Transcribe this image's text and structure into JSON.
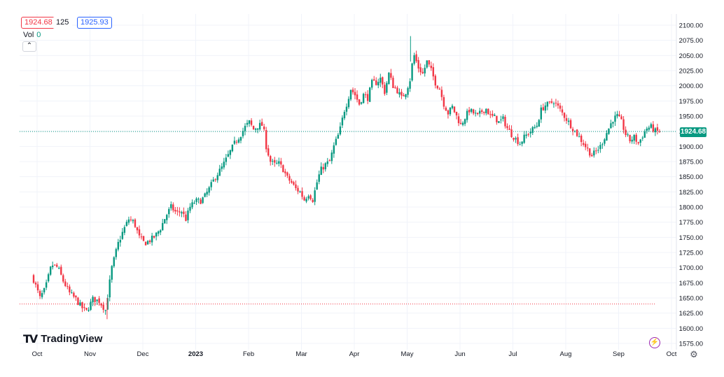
{
  "header": {
    "bid": "1924.68",
    "spread": "125",
    "ask": "1925.93",
    "vol_label": "Vol",
    "vol_value": "0",
    "collapse_icon": "chevron-up-icon"
  },
  "branding": {
    "logo_mark": "TV",
    "logo_text": "TradingView"
  },
  "current_price": "1924.68",
  "colors": {
    "up": "#089981",
    "down": "#f23645",
    "grid": "#f0f3fa",
    "axis_text": "#131722"
  },
  "chart_data": {
    "type": "candlestick",
    "y_axis": {
      "range": [
        1575,
        2100
      ],
      "ticks": [
        "2100.00",
        "2075.00",
        "2050.00",
        "2025.00",
        "2000.00",
        "1975.00",
        "1950.00",
        "1925.00",
        "1900.00",
        "1875.00",
        "1850.00",
        "1825.00",
        "1800.00",
        "1775.00",
        "1750.00",
        "1725.00",
        "1700.00",
        "1675.00",
        "1650.00",
        "1625.00",
        "1600.00",
        "1575.00"
      ]
    },
    "x_axis": {
      "labels": [
        "Oct",
        "Nov",
        "Dec",
        "2023",
        "Feb",
        "Mar",
        "Apr",
        "May",
        "Jun",
        "Jul",
        "Aug",
        "Sep",
        "Oct"
      ],
      "label_index": [
        0,
        5,
        10,
        15,
        20,
        25,
        30,
        35,
        40,
        45,
        50,
        55,
        60
      ],
      "total_slots": 60
    },
    "horizontal_lines": [
      {
        "name": "current-price-line",
        "value": 1924.68,
        "color": "#089981"
      },
      {
        "name": "support-line",
        "value": 1640,
        "color": "#f23645"
      }
    ],
    "close_path": [
      [
        0,
        1680
      ],
      [
        0.6,
        1650
      ],
      [
        1.1,
        1665
      ],
      [
        1.7,
        1705
      ],
      [
        2.3,
        1700
      ],
      [
        2.8,
        1678
      ],
      [
        3.4,
        1658
      ],
      [
        4,
        1648
      ],
      [
        4.5,
        1635
      ],
      [
        5,
        1628
      ],
      [
        5.6,
        1648
      ],
      [
        6.2,
        1645
      ],
      [
        6.8,
        1630
      ],
      [
        7.4,
        1700
      ],
      [
        8,
        1740
      ],
      [
        8.5,
        1762
      ],
      [
        9,
        1780
      ],
      [
        9.5,
        1775
      ],
      [
        10,
        1750
      ],
      [
        10.5,
        1740
      ],
      [
        11,
        1745
      ],
      [
        11.5,
        1752
      ],
      [
        12,
        1765
      ],
      [
        12.5,
        1785
      ],
      [
        13,
        1800
      ],
      [
        13.5,
        1790
      ],
      [
        14,
        1793
      ],
      [
        14.4,
        1780
      ],
      [
        14.8,
        1800
      ],
      [
        15.3,
        1810
      ],
      [
        15.8,
        1810
      ],
      [
        16.2,
        1818
      ],
      [
        16.6,
        1830
      ],
      [
        17.2,
        1850
      ],
      [
        17.8,
        1865
      ],
      [
        18.4,
        1885
      ],
      [
        19,
        1905
      ],
      [
        19.6,
        1920
      ],
      [
        20,
        1932
      ],
      [
        20.4,
        1940
      ],
      [
        20.8,
        1928
      ],
      [
        21.3,
        1935
      ],
      [
        21.7,
        1935
      ],
      [
        22,
        1900
      ],
      [
        22.4,
        1875
      ],
      [
        22.8,
        1870
      ],
      [
        23.2,
        1872
      ],
      [
        23.6,
        1862
      ],
      [
        24,
        1848
      ],
      [
        24.4,
        1840
      ],
      [
        24.8,
        1830
      ],
      [
        25.2,
        1825
      ],
      [
        25.6,
        1812
      ],
      [
        26,
        1822
      ],
      [
        26.4,
        1812
      ],
      [
        26.9,
        1848
      ],
      [
        27.2,
        1862
      ],
      [
        27.6,
        1870
      ],
      [
        28,
        1875
      ],
      [
        28.4,
        1900
      ],
      [
        28.8,
        1918
      ],
      [
        29.1,
        1935
      ],
      [
        29.3,
        1955
      ],
      [
        29.6,
        1970
      ],
      [
        30,
        1995
      ],
      [
        30.4,
        1985
      ],
      [
        30.8,
        1970
      ],
      [
        31.2,
        1985
      ],
      [
        31.6,
        1980
      ],
      [
        32,
        2005
      ],
      [
        32.4,
        2005
      ],
      [
        32.8,
        2012
      ],
      [
        33.2,
        1990
      ],
      [
        33.6,
        2020
      ],
      [
        34,
        2000
      ],
      [
        34.4,
        1992
      ],
      [
        34.8,
        1980
      ],
      [
        35.2,
        1990
      ],
      [
        35.6,
        2010
      ],
      [
        35.8,
        2035
      ],
      [
        36,
        2050
      ],
      [
        36.4,
        2030
      ],
      [
        36.8,
        2020
      ],
      [
        37.2,
        2040
      ],
      [
        37.6,
        2025
      ],
      [
        38,
        2005
      ],
      [
        38.4,
        1995
      ],
      [
        38.8,
        1970
      ],
      [
        39.2,
        1955
      ],
      [
        39.6,
        1965
      ],
      [
        40,
        1950
      ],
      [
        40.4,
        1935
      ],
      [
        40.8,
        1948
      ],
      [
        41.2,
        1960
      ],
      [
        41.6,
        1955
      ],
      [
        42,
        1950
      ],
      [
        42.4,
        1958
      ],
      [
        42.8,
        1962
      ],
      [
        43.2,
        1950
      ],
      [
        43.6,
        1948
      ],
      [
        44,
        1940
      ],
      [
        44.4,
        1945
      ],
      [
        44.8,
        1930
      ],
      [
        45.2,
        1920
      ],
      [
        45.6,
        1912
      ],
      [
        46,
        1905
      ],
      [
        46.4,
        1915
      ],
      [
        46.8,
        1922
      ],
      [
        47.2,
        1928
      ],
      [
        47.6,
        1935
      ],
      [
        48,
        1960
      ],
      [
        48.4,
        1968
      ],
      [
        48.8,
        1970
      ],
      [
        49.2,
        1975
      ],
      [
        49.6,
        1965
      ],
      [
        50,
        1955
      ],
      [
        50.4,
        1945
      ],
      [
        50.8,
        1935
      ],
      [
        51.2,
        1925
      ],
      [
        51.6,
        1915
      ],
      [
        52,
        1905
      ],
      [
        52.4,
        1895
      ],
      [
        52.8,
        1885
      ],
      [
        53.2,
        1892
      ],
      [
        53.6,
        1900
      ],
      [
        54,
        1915
      ],
      [
        54.4,
        1930
      ],
      [
        54.8,
        1945
      ],
      [
        55.2,
        1950
      ],
      [
        55.6,
        1940
      ],
      [
        56,
        1920
      ],
      [
        56.4,
        1910
      ],
      [
        56.8,
        1915
      ],
      [
        57.2,
        1905
      ],
      [
        57.6,
        1918
      ],
      [
        58,
        1930
      ],
      [
        58.4,
        1932
      ],
      [
        58.8,
        1925
      ],
      [
        59.2,
        1924.68
      ]
    ],
    "extremes": {
      "high": 2082,
      "low": 1615
    }
  }
}
